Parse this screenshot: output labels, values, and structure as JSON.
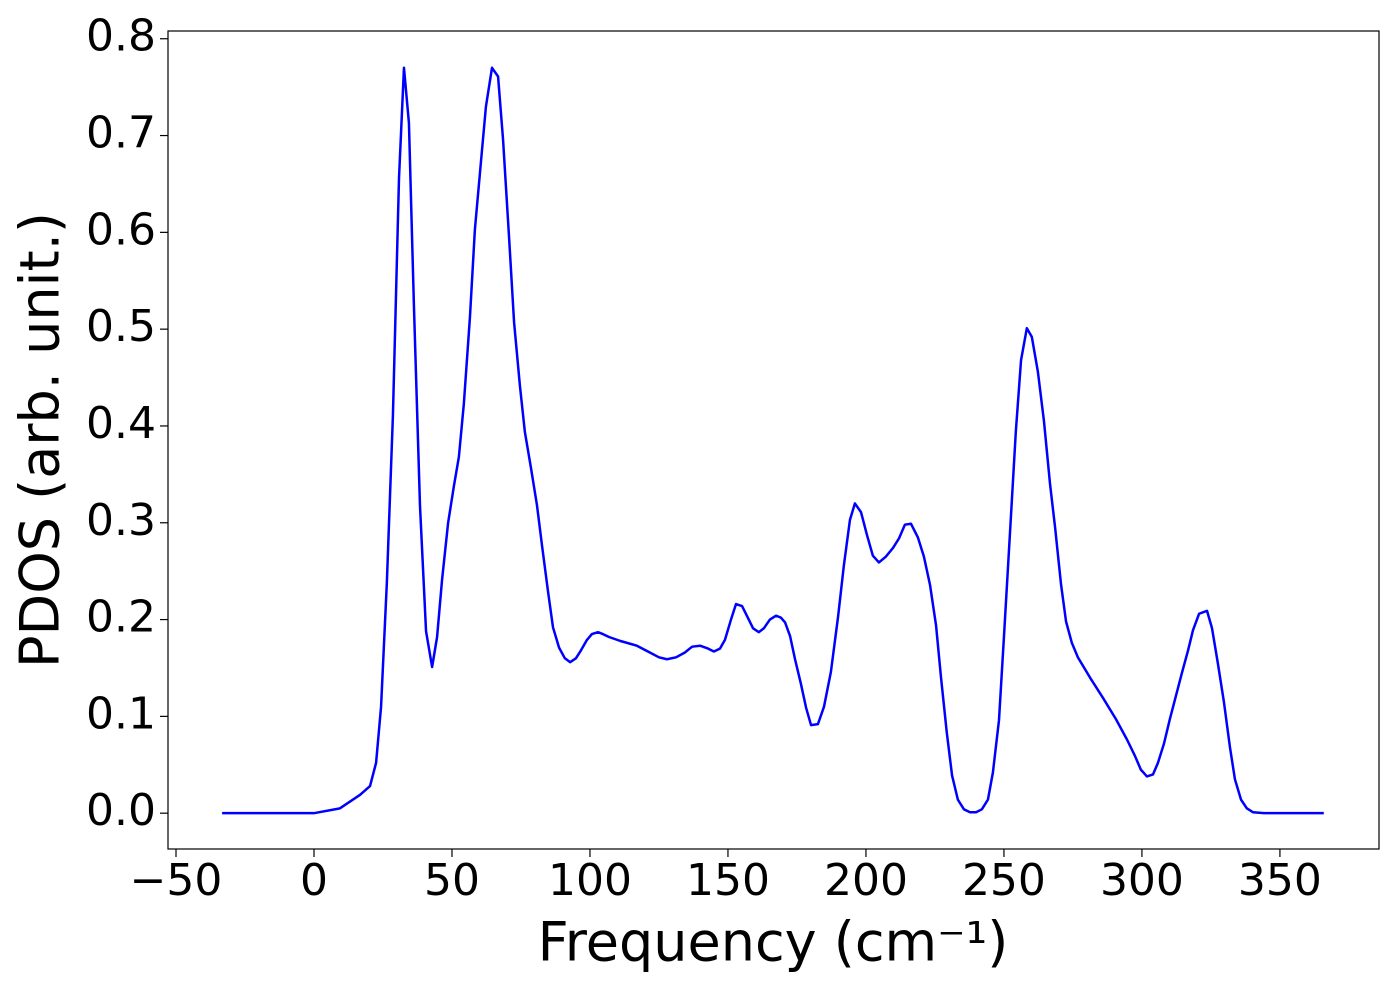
{
  "chart_data": {
    "type": "line",
    "xlabel": "Frequency (cm⁻¹)",
    "ylabel": "PDOS (arb. unit.)",
    "color": "#0000ff",
    "xlim": [
      -52.9,
      385.9
    ],
    "ylim": [
      -0.037,
      0.808
    ],
    "xticks": [
      {
        "value": -50,
        "label": "−50"
      },
      0,
      50,
      100,
      150,
      200,
      250,
      300,
      350
    ],
    "yticks": [
      {
        "value": 0,
        "label": "0.0"
      },
      0.1,
      0.2,
      0.3,
      0.4,
      0.5,
      0.6,
      0.7,
      0.8
    ],
    "x": [
      -33.3,
      0,
      9.4,
      16.7,
      20.3,
      22.5,
      24.3,
      26.4,
      28.6,
      30.8,
      32.6,
      34.4,
      36.2,
      38.4,
      40.6,
      42.8,
      44.6,
      46.4,
      48.6,
      50.7,
      52.5,
      54.3,
      56.5,
      58.3,
      60.5,
      62.3,
      64.5,
      66.7,
      68.5,
      70.7,
      72.5,
      74.6,
      76.4,
      78.6,
      80.8,
      82.6,
      84.8,
      86.6,
      88.8,
      90.9,
      92.8,
      94.9,
      96.7,
      98.9,
      100.7,
      102.9,
      104.7,
      106.9,
      110.9,
      117.0,
      121.0,
      125.0,
      127.9,
      131.2,
      134.4,
      137.0,
      139.9,
      142.8,
      144.9,
      147.1,
      148.9,
      151.1,
      152.9,
      155.1,
      157.2,
      159.1,
      161.2,
      163.0,
      165.2,
      167.4,
      169.2,
      170.7,
      172.5,
      174.3,
      176.4,
      178.3,
      180.1,
      182.6,
      184.8,
      187.3,
      189.9,
      192.0,
      194.2,
      196.0,
      198.2,
      200.4,
      202.5,
      204.7,
      207.2,
      209.8,
      212.0,
      214.1,
      216.3,
      218.8,
      221.0,
      223.2,
      225.4,
      227.2,
      229.3,
      231.2,
      233.3,
      235.5,
      237.7,
      239.9,
      242.0,
      244.2,
      246.0,
      248.2,
      250.0,
      252.2,
      254.3,
      256.2,
      258.3,
      260.1,
      262.3,
      264.5,
      266.7,
      268.5,
      270.7,
      272.5,
      274.6,
      276.8,
      281.2,
      285.9,
      290.6,
      294.6,
      297.5,
      299.6,
      301.8,
      304.0,
      305.8,
      308.0,
      310.1,
      312.3,
      314.5,
      316.7,
      318.5,
      320.7,
      323.6,
      325.4,
      327.5,
      329.7,
      331.9,
      333.7,
      335.9,
      338.0,
      340.2,
      344.2,
      365.9
    ],
    "values": [
      0,
      0,
      0.005,
      0.019,
      0.028,
      0.052,
      0.11,
      0.238,
      0.411,
      0.656,
      0.77,
      0.713,
      0.525,
      0.318,
      0.188,
      0.151,
      0.182,
      0.241,
      0.3,
      0.338,
      0.368,
      0.423,
      0.512,
      0.603,
      0.673,
      0.73,
      0.77,
      0.761,
      0.696,
      0.594,
      0.507,
      0.442,
      0.394,
      0.357,
      0.318,
      0.277,
      0.229,
      0.192,
      0.171,
      0.16,
      0.156,
      0.16,
      0.168,
      0.179,
      0.185,
      0.187,
      0.185,
      0.182,
      0.178,
      0.173,
      0.167,
      0.161,
      0.159,
      0.161,
      0.166,
      0.172,
      0.173,
      0.17,
      0.167,
      0.17,
      0.179,
      0.2,
      0.216,
      0.214,
      0.202,
      0.191,
      0.187,
      0.191,
      0.2,
      0.204,
      0.202,
      0.197,
      0.183,
      0.159,
      0.134,
      0.109,
      0.091,
      0.092,
      0.11,
      0.146,
      0.203,
      0.256,
      0.303,
      0.32,
      0.311,
      0.287,
      0.266,
      0.259,
      0.265,
      0.274,
      0.284,
      0.298,
      0.299,
      0.285,
      0.265,
      0.236,
      0.194,
      0.14,
      0.083,
      0.039,
      0.014,
      0.004,
      0.001,
      0.001,
      0.004,
      0.014,
      0.042,
      0.096,
      0.182,
      0.29,
      0.394,
      0.468,
      0.501,
      0.492,
      0.456,
      0.405,
      0.34,
      0.296,
      0.236,
      0.198,
      0.176,
      0.161,
      0.14,
      0.119,
      0.097,
      0.076,
      0.059,
      0.045,
      0.038,
      0.04,
      0.052,
      0.072,
      0.097,
      0.121,
      0.145,
      0.168,
      0.189,
      0.206,
      0.209,
      0.191,
      0.155,
      0.115,
      0.068,
      0.035,
      0.014,
      0.005,
      0.001,
      0,
      0
    ]
  }
}
